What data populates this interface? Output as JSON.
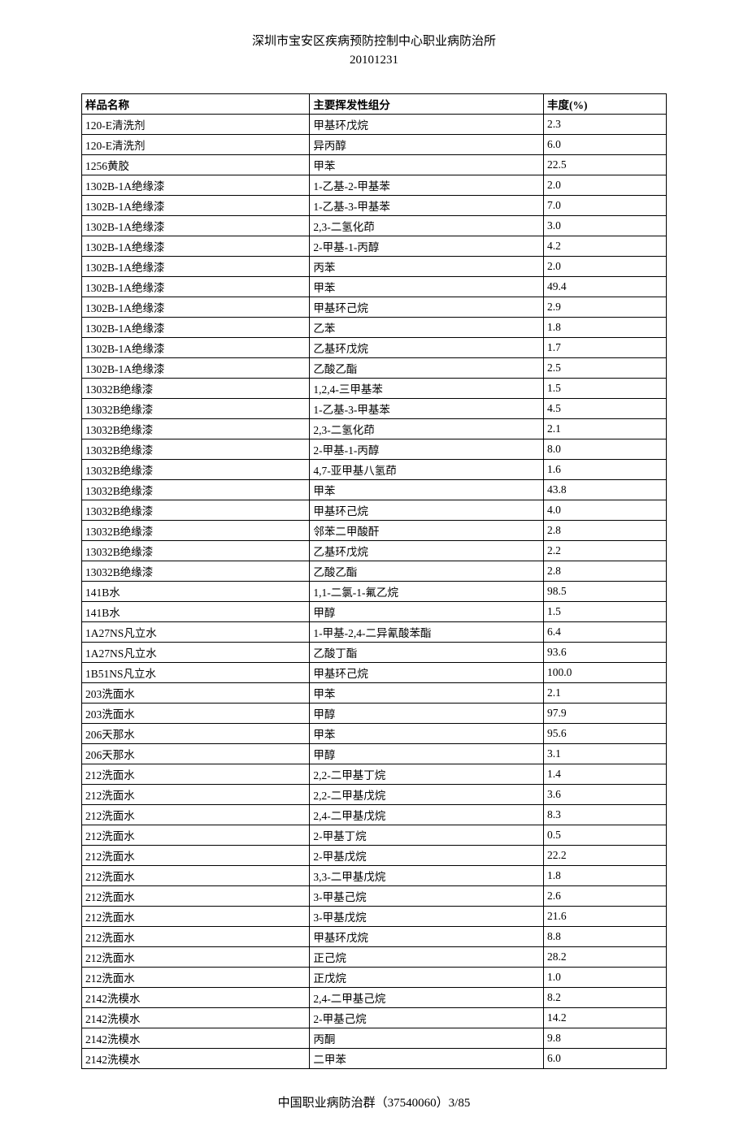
{
  "header": {
    "line1": "深圳市宝安区疾病预防控制中心职业病防治所",
    "line2": "20101231"
  },
  "table": {
    "columns": [
      "样品名称",
      "主要挥发性组分",
      "丰度(%)"
    ],
    "rows": [
      [
        "120-E清洗剂",
        "甲基环戊烷",
        "2.3"
      ],
      [
        "120-E清洗剂",
        "异丙醇",
        "6.0"
      ],
      [
        "1256黄胶",
        "甲苯",
        "22.5"
      ],
      [
        "1302B-1A绝缘漆",
        "1-乙基-2-甲基苯",
        "2.0"
      ],
      [
        "1302B-1A绝缘漆",
        "1-乙基-3-甲基苯",
        "7.0"
      ],
      [
        "1302B-1A绝缘漆",
        "2,3-二氢化茚",
        "3.0"
      ],
      [
        "1302B-1A绝缘漆",
        "2-甲基-1-丙醇",
        "4.2"
      ],
      [
        "1302B-1A绝缘漆",
        "丙苯",
        "2.0"
      ],
      [
        "1302B-1A绝缘漆",
        "甲苯",
        "49.4"
      ],
      [
        "1302B-1A绝缘漆",
        "甲基环己烷",
        "2.9"
      ],
      [
        "1302B-1A绝缘漆",
        "乙苯",
        "1.8"
      ],
      [
        "1302B-1A绝缘漆",
        "乙基环戊烷",
        "1.7"
      ],
      [
        "1302B-1A绝缘漆",
        "乙酸乙酯",
        "2.5"
      ],
      [
        "13032B绝缘漆",
        "1,2,4-三甲基苯",
        "1.5"
      ],
      [
        "13032B绝缘漆",
        "1-乙基-3-甲基苯",
        "4.5"
      ],
      [
        "13032B绝缘漆",
        "2,3-二氢化茚",
        "2.1"
      ],
      [
        "13032B绝缘漆",
        "2-甲基-1-丙醇",
        "8.0"
      ],
      [
        "13032B绝缘漆",
        "4,7-亚甲基八氢茚",
        "1.6"
      ],
      [
        "13032B绝缘漆",
        "甲苯",
        "43.8"
      ],
      [
        "13032B绝缘漆",
        "甲基环己烷",
        "4.0"
      ],
      [
        "13032B绝缘漆",
        "邻苯二甲酸酐",
        "2.8"
      ],
      [
        "13032B绝缘漆",
        "乙基环戊烷",
        "2.2"
      ],
      [
        "13032B绝缘漆",
        "乙酸乙酯",
        "2.8"
      ],
      [
        "141B水",
        "1,1-二氯-1-氟乙烷",
        "98.5"
      ],
      [
        "141B水",
        "甲醇",
        "1.5"
      ],
      [
        "1A27NS凡立水",
        "1-甲基-2,4-二异氰酸苯酯",
        "6.4"
      ],
      [
        "1A27NS凡立水",
        "乙酸丁酯",
        "93.6"
      ],
      [
        "1B51NS凡立水",
        "甲基环己烷",
        "100.0"
      ],
      [
        "203洗面水",
        "甲苯",
        "2.1"
      ],
      [
        "203洗面水",
        "甲醇",
        "97.9"
      ],
      [
        "206天那水",
        "甲苯",
        "95.6"
      ],
      [
        "206天那水",
        "甲醇",
        "3.1"
      ],
      [
        "212洗面水",
        "2,2-二甲基丁烷",
        "1.4"
      ],
      [
        "212洗面水",
        "2,2-二甲基戊烷",
        "3.6"
      ],
      [
        "212洗面水",
        "2,4-二甲基戊烷",
        "8.3"
      ],
      [
        "212洗面水",
        "2-甲基丁烷",
        "0.5"
      ],
      [
        "212洗面水",
        "2-甲基戊烷",
        "22.2"
      ],
      [
        "212洗面水",
        "3,3-二甲基戊烷",
        "1.8"
      ],
      [
        "212洗面水",
        "3-甲基己烷",
        "2.6"
      ],
      [
        "212洗面水",
        "3-甲基戊烷",
        "21.6"
      ],
      [
        "212洗面水",
        "甲基环戊烷",
        "8.8"
      ],
      [
        "212洗面水",
        "正己烷",
        "28.2"
      ],
      [
        "212洗面水",
        "正戊烷",
        "1.0"
      ],
      [
        "2142洗模水",
        "2,4-二甲基己烷",
        "8.2"
      ],
      [
        "2142洗模水",
        "2-甲基己烷",
        "14.2"
      ],
      [
        "2142洗模水",
        "丙酮",
        "9.8"
      ],
      [
        "2142洗模水",
        "二甲苯",
        "6.0"
      ]
    ]
  },
  "footer": {
    "text": "中国职业病防治群（37540060）3/85"
  }
}
